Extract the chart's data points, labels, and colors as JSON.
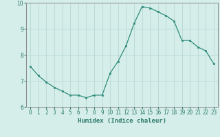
{
  "x": [
    0,
    1,
    2,
    3,
    4,
    5,
    6,
    7,
    8,
    9,
    10,
    11,
    12,
    13,
    14,
    15,
    16,
    17,
    18,
    19,
    20,
    21,
    22,
    23
  ],
  "y": [
    7.55,
    7.2,
    6.95,
    6.75,
    6.6,
    6.45,
    6.45,
    6.35,
    6.45,
    6.45,
    7.3,
    7.75,
    8.35,
    9.2,
    9.85,
    9.8,
    9.65,
    9.5,
    9.3,
    8.55,
    8.55,
    8.3,
    8.15,
    7.65
  ],
  "line_color": "#2e8b7a",
  "marker": "s",
  "marker_size": 1.8,
  "bg_color": "#d5eeea",
  "grid_color": "#b8d8d4",
  "xlabel": "Humidex (Indice chaleur)",
  "ylim": [
    6,
    10
  ],
  "xlim": [
    -0.5,
    23.5
  ],
  "yticks": [
    6,
    7,
    8,
    9,
    10
  ],
  "xticks": [
    0,
    1,
    2,
    3,
    4,
    5,
    6,
    7,
    8,
    9,
    10,
    11,
    12,
    13,
    14,
    15,
    16,
    17,
    18,
    19,
    20,
    21,
    22,
    23
  ],
  "xtick_labels": [
    "0",
    "1",
    "2",
    "3",
    "4",
    "5",
    "6",
    "7",
    "8",
    "9",
    "10",
    "11",
    "12",
    "13",
    "14",
    "15",
    "16",
    "17",
    "18",
    "19",
    "20",
    "21",
    "22",
    "23"
  ],
  "tick_color": "#2e7a6a",
  "label_fontsize": 6.5,
  "tick_fontsize": 5.5,
  "spine_color": "#888888"
}
